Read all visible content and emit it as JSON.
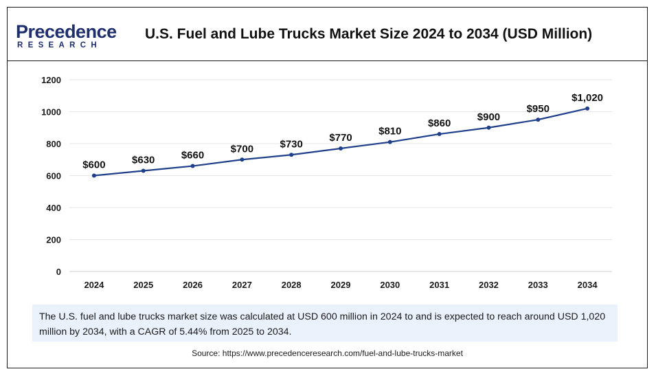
{
  "header": {
    "logo_top": "Precedence",
    "logo_bottom": "RESEARCH",
    "title": "U.S. Fuel and Lube Trucks Market Size 2024 to 2034 (USD Million)"
  },
  "chart_data": {
    "type": "line",
    "title": "U.S. Fuel and Lube Trucks Market Size 2024 to 2034 (USD Million)",
    "xlabel": "",
    "ylabel": "",
    "categories": [
      "2024",
      "2025",
      "2026",
      "2027",
      "2028",
      "2029",
      "2030",
      "2031",
      "2032",
      "2033",
      "2034"
    ],
    "series": [
      {
        "values": [
          600,
          630,
          660,
          700,
          730,
          770,
          810,
          860,
          900,
          950,
          1020
        ],
        "labels": [
          "$600",
          "$630",
          "$660",
          "$700",
          "$730",
          "$770",
          "$810",
          "$860",
          "$900",
          "$950",
          "$1,020"
        ],
        "color": "#1f3f8a"
      }
    ],
    "yticks": [
      0,
      200,
      400,
      600,
      800,
      1000,
      1200
    ],
    "ylim": [
      0,
      1200
    ],
    "grid": true,
    "legend": "none"
  },
  "footer": {
    "note": "The U.S. fuel and lube trucks market size was calculated at USD 600 million in 2024 to and is expected to reach around USD 1,020 million by 2034, with a CAGR of 5.44% from 2025 to 2034.",
    "source": "Source: https://www.precedenceresearch.com/fuel-and-lube-trucks-market"
  }
}
